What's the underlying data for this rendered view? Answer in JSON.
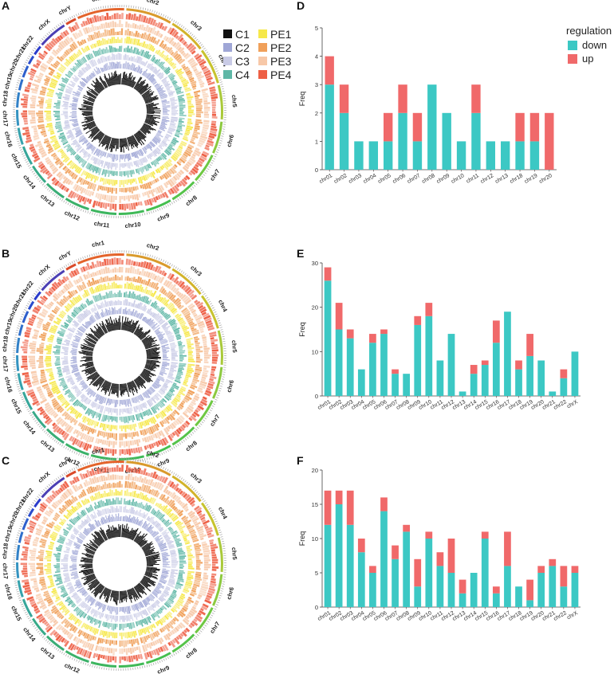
{
  "panels": {
    "a": "A",
    "b": "B",
    "c": "C",
    "d": "D",
    "e": "E",
    "f": "F"
  },
  "circos": {
    "chromosomes": [
      "chr1",
      "chr2",
      "chr3",
      "chr4",
      "chr5",
      "chr6",
      "chr7",
      "chr8",
      "chr9",
      "chr10",
      "chr11",
      "chr12",
      "chr13",
      "chr14",
      "chr15",
      "chr16",
      "chr17",
      "chr18",
      "chr19",
      "chr20",
      "chr21",
      "chr22",
      "chrX",
      "chrY"
    ],
    "legend": [
      {
        "label": "C1",
        "color": "#111111"
      },
      {
        "label": "PE1",
        "color": "#f6e84a"
      },
      {
        "label": "C2",
        "color": "#9fa6d6"
      },
      {
        "label": "PE2",
        "color": "#f0a05a"
      },
      {
        "label": "C3",
        "color": "#c9cbe6"
      },
      {
        "label": "PE3",
        "color": "#f7c8a8"
      },
      {
        "label": "C4",
        "color": "#5fb7a6"
      },
      {
        "label": "PE4",
        "color": "#ee5f45"
      }
    ]
  },
  "colors": {
    "down": "#3cc8c4",
    "up": "#f0696a"
  },
  "chart_data": [
    {
      "type": "bar",
      "stacked": true,
      "panel": "D",
      "title": "",
      "xlabel": "",
      "ylabel": "Freq",
      "ylim": [
        0,
        5
      ],
      "yticks": [
        0,
        1,
        2,
        3,
        4,
        5
      ],
      "legend": {
        "title": "regulation",
        "placement": "top-right"
      },
      "categories": [
        "chr01",
        "chr02",
        "chr03",
        "chr04",
        "chr05",
        "chr06",
        "chr07",
        "chr08",
        "chr09",
        "chr10",
        "chr11",
        "chr12",
        "chr13",
        "chr18",
        "chr19",
        "chr20"
      ],
      "series": [
        {
          "name": "down",
          "values": [
            3,
            2,
            1,
            1,
            1,
            2,
            1,
            3,
            2,
            1,
            2,
            1,
            1,
            1,
            1,
            0
          ]
        },
        {
          "name": "up",
          "values": [
            1,
            1,
            0,
            0,
            1,
            1,
            1,
            0,
            0,
            0,
            1,
            0,
            0,
            1,
            1,
            2
          ]
        }
      ]
    },
    {
      "type": "bar",
      "stacked": true,
      "panel": "E",
      "title": "",
      "xlabel": "",
      "ylabel": "Freq",
      "ylim": [
        0,
        30
      ],
      "yticks": [
        0,
        10,
        20,
        30
      ],
      "categories": [
        "chr01",
        "chr02",
        "chr03",
        "chr04",
        "chr05",
        "chr06",
        "chr07",
        "chr08",
        "chr09",
        "chr10",
        "chr11",
        "chr12",
        "chr13",
        "chr14",
        "chr15",
        "chr16",
        "chr17",
        "chr18",
        "chr19",
        "chr20",
        "chr21",
        "chr22",
        "chrX"
      ],
      "series": [
        {
          "name": "down",
          "values": [
            26,
            15,
            13,
            6,
            12,
            14,
            5,
            5,
            16,
            18,
            8,
            14,
            1,
            5,
            7,
            12,
            19,
            6,
            9,
            8,
            1,
            4,
            10
          ]
        },
        {
          "name": "up",
          "values": [
            3,
            6,
            2,
            0,
            2,
            1,
            1,
            0,
            2,
            3,
            0,
            0,
            0,
            2,
            1,
            5,
            0,
            2,
            5,
            0,
            0,
            2,
            0
          ]
        }
      ]
    },
    {
      "type": "bar",
      "stacked": true,
      "panel": "F",
      "title": "",
      "xlabel": "",
      "ylabel": "Freq",
      "ylim": [
        0,
        20
      ],
      "yticks": [
        0,
        5,
        10,
        15,
        20
      ],
      "categories": [
        "chr01",
        "chr02",
        "chr03",
        "chr04",
        "chr05",
        "chr06",
        "chr07",
        "chr08",
        "chr09",
        "chr10",
        "chr11",
        "chr12",
        "chr13",
        "chr14",
        "chr15",
        "chr16",
        "chr17",
        "chr18",
        "chr19",
        "chr20",
        "chr21",
        "chr22",
        "chrX"
      ],
      "series": [
        {
          "name": "down",
          "values": [
            12,
            15,
            12,
            8,
            5,
            14,
            7,
            11,
            3,
            10,
            6,
            5,
            2,
            5,
            10,
            2,
            6,
            3,
            1,
            5,
            6,
            3,
            5
          ]
        },
        {
          "name": "up",
          "values": [
            5,
            2,
            5,
            2,
            1,
            2,
            2,
            1,
            4,
            1,
            2,
            5,
            2,
            0,
            1,
            1,
            5,
            0,
            3,
            1,
            1,
            3,
            1
          ]
        }
      ]
    }
  ]
}
